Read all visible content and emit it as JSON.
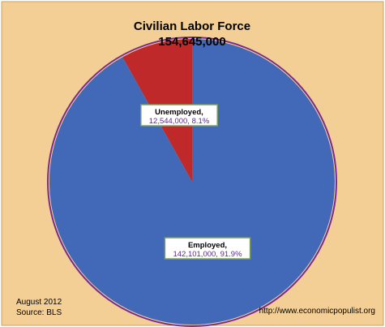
{
  "chart_data": {
    "type": "pie",
    "title": "Civilian Labor Force",
    "subtitle": "154,645,000",
    "slices": [
      {
        "name": "Employed",
        "value": 142101000,
        "value_label": "142,101,000",
        "percent_label": "91.9%",
        "color": "#4169b8"
      },
      {
        "name": "Unemployed",
        "value": 12544000,
        "value_label": "12,544,000",
        "percent_label": "8.1%",
        "color": "#c0292a"
      }
    ],
    "background_color": "#f4cf95",
    "border_color": "#7a2b8f",
    "legend": "none"
  },
  "footer": {
    "date": "August 2012",
    "source": "Source:  BLS",
    "url": "http://www.economicpopulist.org"
  }
}
